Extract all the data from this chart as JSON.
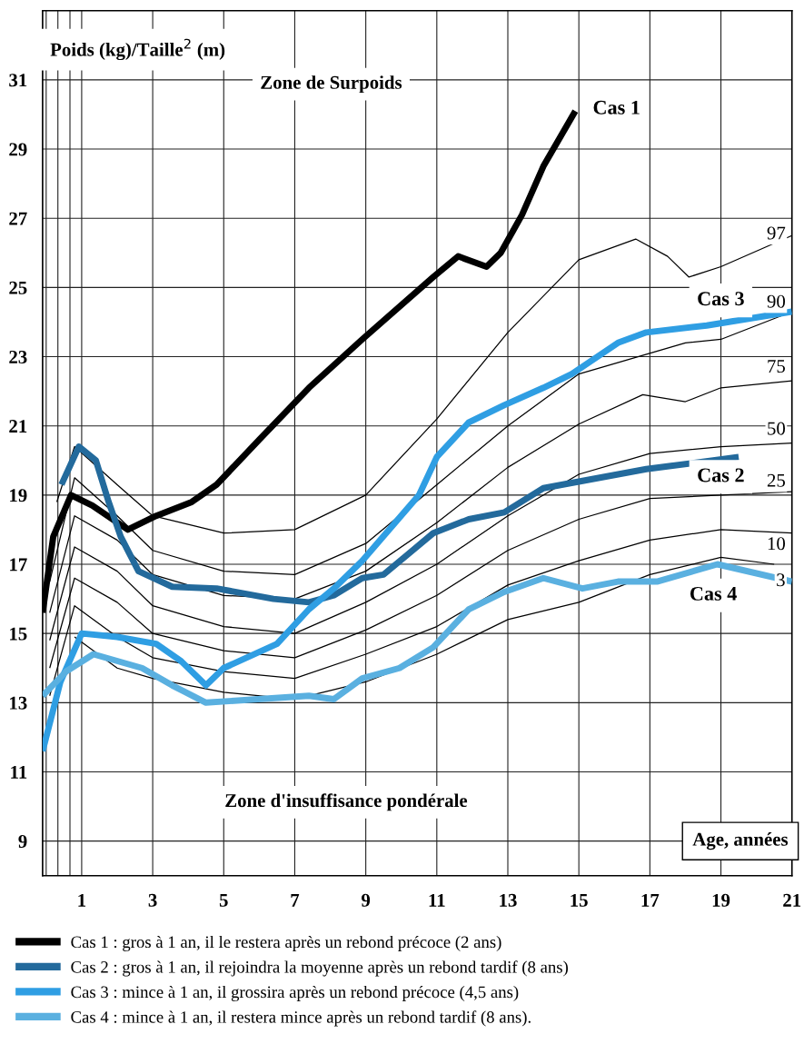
{
  "chart_data": {
    "type": "line",
    "xlabel": "Age, années",
    "ylabel": "Poids (kg)/Taille$^{2}$ (m)",
    "xlim": [
      -0.1,
      21
    ],
    "ylim": [
      8,
      33
    ],
    "xticks": [
      {
        "value": 0,
        "label": null
      },
      {
        "value": 0.33,
        "label": null
      },
      {
        "value": 0.67,
        "label": null
      },
      1,
      3,
      5,
      7,
      9,
      11,
      13,
      15,
      17,
      19,
      21
    ],
    "yticks": [
      9,
      11,
      13,
      15,
      17,
      19,
      21,
      23,
      25,
      27,
      29,
      31
    ],
    "grid": true,
    "legend": "bottom",
    "line_style": "solid",
    "marker": "none",
    "series": [
      {
        "color": "#000000",
        "x": [
          0.3,
          0.8,
          2,
          3,
          5,
          7,
          9,
          11,
          13,
          15,
          16.6,
          17.5,
          18.1,
          19,
          21
        ],
        "values": [
          18.8,
          20.4,
          19.3,
          18.4,
          17.9,
          18.0,
          19.0,
          21.2,
          23.7,
          25.8,
          26.4,
          25.9,
          25.3,
          25.6,
          26.5
        ]
      },
      {
        "color": "#000000",
        "x": [
          0.1,
          0.8,
          2,
          3,
          5,
          7,
          9,
          11,
          13,
          15,
          18,
          19,
          21
        ],
        "values": [
          16.5,
          19.5,
          18.4,
          17.4,
          16.8,
          16.7,
          17.6,
          19.3,
          21.0,
          22.5,
          23.4,
          23.5,
          24.3
        ]
      },
      {
        "color": "#000000",
        "x": [
          0.1,
          0.8,
          2,
          3,
          5,
          7,
          9,
          11,
          13,
          15,
          16.8,
          18,
          19,
          21
        ],
        "values": [
          15.6,
          18.4,
          17.7,
          16.7,
          16.1,
          16.0,
          16.8,
          18.2,
          19.8,
          21.05,
          21.9,
          21.7,
          22.1,
          22.3
        ]
      },
      {
        "color": "#000000",
        "x": [
          0.1,
          0.8,
          2,
          3,
          5,
          7,
          9,
          11,
          13,
          15,
          17,
          19,
          21
        ],
        "values": [
          14.8,
          17.5,
          16.8,
          15.8,
          15.2,
          15.0,
          15.9,
          17.0,
          18.4,
          19.6,
          20.2,
          20.4,
          20.5
        ]
      },
      {
        "color": "#000000",
        "x": [
          0.1,
          0.8,
          2,
          3,
          5,
          7,
          9,
          11,
          13,
          15,
          17,
          19,
          21
        ],
        "values": [
          14.0,
          16.6,
          15.9,
          15.0,
          14.5,
          14.3,
          15.1,
          16.1,
          17.4,
          18.3,
          18.9,
          19.0,
          19.1
        ]
      },
      {
        "color": "#000000",
        "x": [
          0.1,
          0.8,
          2,
          3,
          5,
          7,
          9,
          11,
          13,
          15,
          17,
          19,
          21
        ],
        "values": [
          13.2,
          15.8,
          14.9,
          14.3,
          13.9,
          13.7,
          14.4,
          15.2,
          16.4,
          17.1,
          17.7,
          18.0,
          17.9
        ]
      },
      {
        "color": "#000000",
        "x": [
          0.8,
          2,
          3,
          5,
          7,
          9,
          11,
          13,
          15,
          17,
          19,
          20.5
        ],
        "values": [
          14.9,
          14.0,
          13.7,
          13.3,
          13.1,
          13.6,
          14.4,
          15.4,
          15.9,
          16.7,
          17.2,
          17.0
        ]
      },
      {
        "name": "Cas 1 : gros à 1 an, il le restera après un rebond précoce (2 ans)",
        "color": "#000000",
        "x": [
          -0.1,
          0.2,
          0.7,
          1.3,
          2.3,
          3.1,
          4.1,
          4.8,
          6,
          7.4,
          8.9,
          10.9,
          11.6,
          12.4,
          12.8,
          13.4,
          14,
          14.9
        ],
        "values": [
          15.6,
          17.8,
          19.0,
          18.7,
          18.0,
          18.4,
          18.8,
          19.3,
          20.6,
          22.1,
          23.5,
          25.3,
          25.9,
          25.6,
          26.0,
          27.1,
          28.5,
          30.1
        ]
      },
      {
        "name": "Cas 2 : gros à 1 an, il rejoindra la moyenne après un rebond tardif (8 ans)",
        "color": "#236a9c",
        "x": [
          0.43,
          0.92,
          1.4,
          1.76,
          2.1,
          2.6,
          3.55,
          4.8,
          6.4,
          7.4,
          8.1,
          8.9,
          9.5,
          10.2,
          10.9,
          11.9,
          12.9,
          14.0,
          16.9,
          19.5
        ],
        "values": [
          19.3,
          20.4,
          20.0,
          18.8,
          17.8,
          16.8,
          16.35,
          16.3,
          16.0,
          15.9,
          16.1,
          16.6,
          16.7,
          17.3,
          17.9,
          18.3,
          18.5,
          19.2,
          19.75,
          20.1
        ]
      },
      {
        "name": "Cas 3 : mince à 1 an, il grossira après un rebond précoce (4,5 ans)",
        "color": "#2f9ee3",
        "x": [
          -0.1,
          0.4,
          1.0,
          2,
          3.1,
          3.8,
          4.5,
          5.0,
          6.5,
          7.4,
          8.1,
          8.9,
          10.5,
          11.0,
          11.9,
          12.9,
          14.0,
          14.8,
          16.1,
          16.9,
          18.6,
          21
        ],
        "values": [
          11.6,
          13.6,
          15.0,
          14.9,
          14.7,
          14.2,
          13.5,
          14.0,
          14.7,
          15.7,
          16.3,
          17.1,
          19.0,
          20.1,
          21.1,
          21.6,
          22.1,
          22.5,
          23.4,
          23.7,
          23.9,
          24.3
        ]
      },
      {
        "name": "Cas 4 : mince à 1 an, il restera mince après un rebond tardif (8 ans).",
        "color": "#5ab0e0",
        "x": [
          -0.1,
          0.56,
          1.33,
          2.7,
          3.55,
          4.5,
          7.4,
          8.1,
          8.9,
          9.95,
          10.9,
          11.9,
          12.9,
          14.0,
          15.1,
          16.1,
          17.2,
          18.9,
          21
        ],
        "values": [
          13.2,
          13.9,
          14.4,
          14.0,
          13.5,
          13.0,
          13.2,
          13.1,
          13.7,
          14.0,
          14.6,
          15.7,
          16.2,
          16.6,
          16.3,
          16.5,
          16.5,
          17.0,
          16.5
        ]
      }
    ],
    "annotations": [
      "Zone de Surpoids",
      "Zone d'insuffisance pondérale",
      "Cas 1",
      "Cas 2",
      "Cas 3",
      "Cas 4",
      "97",
      "90",
      "75",
      "50",
      "25",
      "10",
      "3"
    ]
  }
}
